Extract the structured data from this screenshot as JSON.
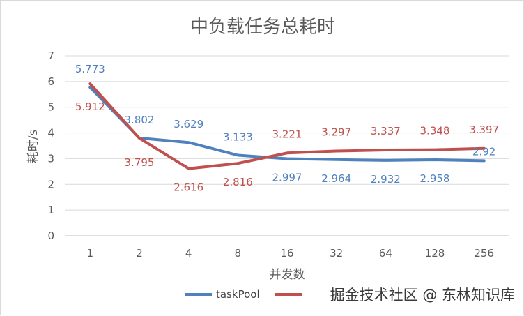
{
  "chart_data": {
    "type": "line",
    "title": "中负载任务总耗时",
    "xlabel": "并发数",
    "ylabel": "耗时/s",
    "categories": [
      "1",
      "2",
      "4",
      "8",
      "16",
      "32",
      "64",
      "128",
      "256"
    ],
    "ylim": [
      0,
      7
    ],
    "yticks": [
      "0",
      "1",
      "2",
      "3",
      "4",
      "5",
      "6",
      "7"
    ],
    "grid": true,
    "legend": "bottom",
    "series": [
      {
        "name": "taskPool",
        "color": "#4f81bd",
        "values": [
          5.773,
          3.802,
          3.629,
          3.133,
          2.997,
          2.964,
          2.932,
          2.958,
          2.92
        ],
        "labels": [
          "5.773",
          "3.802",
          "3.629",
          "3.133",
          "2.997",
          "2.964",
          "2.932",
          "2.958",
          "2.92"
        ]
      },
      {
        "name": "",
        "color": "#c0504d",
        "values": [
          5.912,
          3.795,
          2.616,
          2.816,
          3.221,
          3.297,
          3.337,
          3.348,
          3.397
        ],
        "labels": [
          "5.912",
          "3.795",
          "2.616",
          "2.816",
          "3.221",
          "3.297",
          "3.337",
          "3.348",
          "3.397"
        ]
      }
    ]
  },
  "watermark": "掘金技术社区 @ 东林知识库"
}
